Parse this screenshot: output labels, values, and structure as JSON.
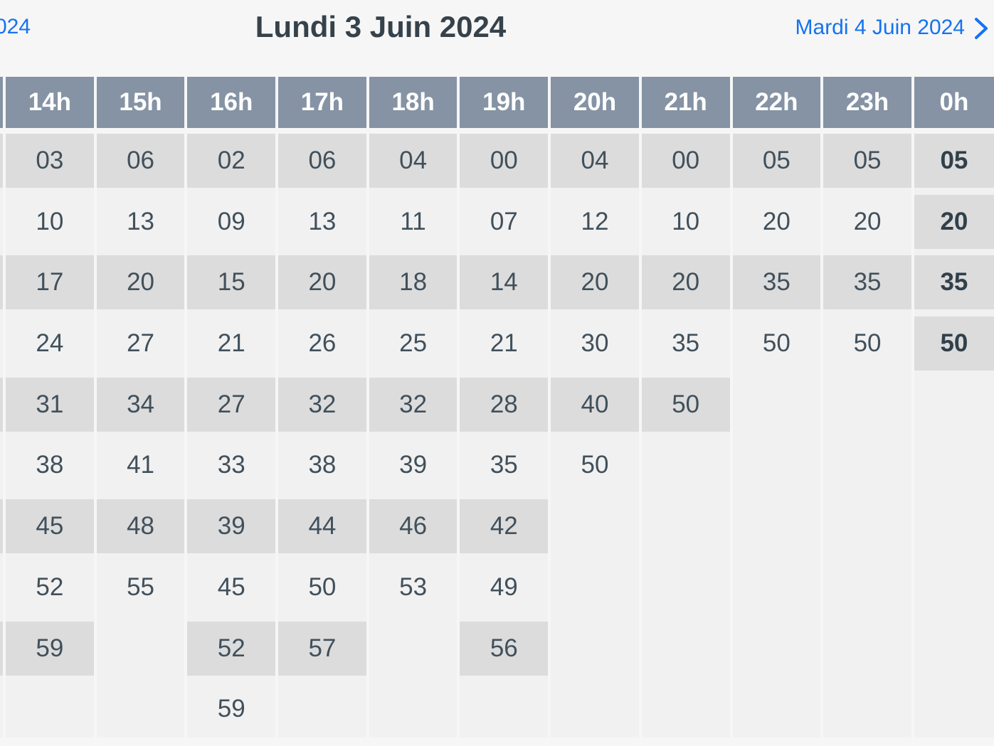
{
  "nav": {
    "prev_label": "024",
    "title": "Lundi 3 Juin 2024",
    "next_label": "Mardi 4 Juin 2024"
  },
  "colors": {
    "accent": "#1473f0",
    "header_bg": "#8593a4",
    "column_bg": "#f1f1f1",
    "cell_shade": "#dcdcdc",
    "cell_text": "#41505b",
    "cell_text_bold": "#31404a",
    "title_color": "#36424b",
    "page_bg": "#f6f6f6"
  },
  "timetable": {
    "columns": [
      {
        "label": "",
        "edge": true,
        "minutes": [
          "",
          "",
          "",
          "",
          "",
          "",
          "",
          "",
          ""
        ]
      },
      {
        "label": "14h",
        "minutes": [
          "03",
          "10",
          "17",
          "24",
          "31",
          "38",
          "45",
          "52",
          "59"
        ]
      },
      {
        "label": "15h",
        "minutes": [
          "06",
          "13",
          "20",
          "27",
          "34",
          "41",
          "48",
          "55"
        ]
      },
      {
        "label": "16h",
        "minutes": [
          "02",
          "09",
          "15",
          "21",
          "27",
          "33",
          "39",
          "45",
          "52",
          "59"
        ]
      },
      {
        "label": "17h",
        "minutes": [
          "06",
          "13",
          "20",
          "26",
          "32",
          "38",
          "44",
          "50",
          "57"
        ]
      },
      {
        "label": "18h",
        "minutes": [
          "04",
          "11",
          "18",
          "25",
          "32",
          "39",
          "46",
          "53"
        ]
      },
      {
        "label": "19h",
        "minutes": [
          "00",
          "07",
          "14",
          "21",
          "28",
          "35",
          "42",
          "49",
          "56"
        ]
      },
      {
        "label": "20h",
        "minutes": [
          "04",
          "12",
          "20",
          "30",
          "40",
          "50"
        ]
      },
      {
        "label": "21h",
        "minutes": [
          "00",
          "10",
          "20",
          "35",
          "50"
        ]
      },
      {
        "label": "22h",
        "minutes": [
          "05",
          "20",
          "35",
          "50"
        ]
      },
      {
        "label": "23h",
        "minutes": [
          "05",
          "20",
          "35",
          "50"
        ]
      },
      {
        "label": "0h",
        "highlight": true,
        "minutes": [
          "05",
          "20",
          "35",
          "50"
        ]
      }
    ]
  }
}
